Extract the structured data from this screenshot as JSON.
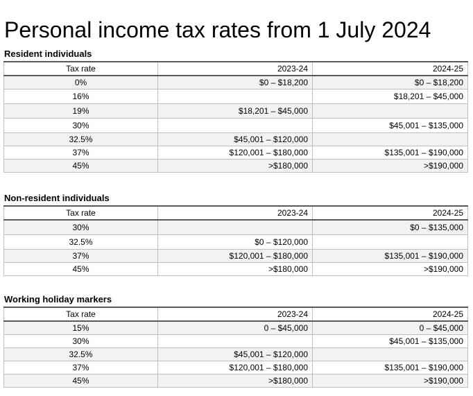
{
  "title": "Personal income tax rates from 1 July 2024",
  "headers": {
    "rate": "Tax rate",
    "y1": "2023-24",
    "y2": "2024-25"
  },
  "sections": [
    {
      "heading": "Resident individuals",
      "rows": [
        {
          "rate": "0%",
          "y1": "$0 – $18,200",
          "y2": "$0 – $18,200"
        },
        {
          "rate": "16%",
          "y1": "",
          "y2": "$18,201 – $45,000"
        },
        {
          "rate": "19%",
          "y1": "$18,201 – $45,000",
          "y2": ""
        },
        {
          "rate": "30%",
          "y1": "",
          "y2": "$45,001 – $135,000"
        },
        {
          "rate": "32.5%",
          "y1": "$45,001 – $120,000",
          "y2": ""
        },
        {
          "rate": "37%",
          "y1": "$120,001 – $180,000",
          "y2": "$135,001 – $190,000"
        },
        {
          "rate": "45%",
          "y1": ">$180,000",
          "y2": ">$190,000"
        }
      ]
    },
    {
      "heading": "Non-resident individuals",
      "rows": [
        {
          "rate": "30%",
          "y1": "",
          "y2": "$0 – $135,000"
        },
        {
          "rate": "32.5%",
          "y1": "$0 – $120,000",
          "y2": ""
        },
        {
          "rate": "37%",
          "y1": "$120,001 – $180,000",
          "y2": "$135,001 – $190,000"
        },
        {
          "rate": "45%",
          "y1": ">$180,000",
          "y2": ">$190,000"
        }
      ]
    },
    {
      "heading": "Working holiday markers",
      "rows": [
        {
          "rate": "15%",
          "y1": "0 – $45,000",
          "y2": "0 – $45,000"
        },
        {
          "rate": "30%",
          "y1": "",
          "y2": "$45,001 – $135,000"
        },
        {
          "rate": "32.5%",
          "y1": "$45,001 – $120,000",
          "y2": ""
        },
        {
          "rate": "37%",
          "y1": "$120,001 – $180,000",
          "y2": "$135,001 – $190,000"
        },
        {
          "rate": "45%",
          "y1": ">$180,000",
          "y2": ">$190,000"
        }
      ]
    }
  ]
}
